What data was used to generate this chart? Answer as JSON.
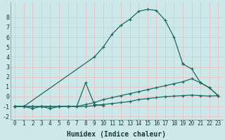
{
  "xlabel": "Humidex (Indice chaleur)",
  "background_color": "#cde8e8",
  "grid_color": "#e8c8c8",
  "line_color": "#1a6b60",
  "xlim": [
    -0.5,
    23.5
  ],
  "ylim": [
    -2.3,
    9.5
  ],
  "xticks": [
    0,
    1,
    2,
    3,
    4,
    5,
    6,
    7,
    8,
    9,
    10,
    11,
    12,
    13,
    14,
    15,
    16,
    17,
    18,
    19,
    20,
    21,
    22,
    23
  ],
  "yticks": [
    -2,
    -1,
    0,
    1,
    2,
    3,
    4,
    5,
    6,
    7,
    8
  ],
  "series": [
    {
      "x": [
        0,
        1,
        9,
        10,
        11,
        12,
        13,
        14,
        15,
        16,
        17,
        18,
        19
      ],
      "y": [
        -1,
        -1,
        4.0,
        5.0,
        6.3,
        7.2,
        7.8,
        8.6,
        8.8,
        8.7,
        7.7,
        6.0,
        3.3
      ]
    },
    {
      "x": [
        0,
        1,
        2,
        3,
        4,
        5,
        6,
        7,
        8,
        9,
        10,
        11,
        12,
        13,
        14,
        15,
        16,
        17,
        18,
        19,
        20,
        21,
        22,
        23
      ],
      "y": [
        -1,
        -1,
        -1,
        -1,
        -1,
        -1,
        -1,
        -1,
        -0.8,
        -0.6,
        -0.3,
        -0.1,
        0.1,
        0.3,
        0.5,
        0.7,
        0.9,
        1.1,
        1.3,
        1.5,
        1.8,
        1.4,
        0.9,
        0.1
      ]
    },
    {
      "x": [
        0,
        1,
        2,
        3,
        4,
        5,
        6,
        7,
        8,
        9,
        10,
        11,
        12,
        13,
        14,
        15,
        16,
        17,
        18,
        19,
        20,
        21,
        22,
        23
      ],
      "y": [
        -1,
        -1,
        -1,
        -1,
        -1,
        -1,
        -1,
        -1,
        -1,
        -0.9,
        -0.8,
        -0.7,
        -0.6,
        -0.5,
        -0.3,
        -0.2,
        -0.1,
        0.0,
        0.05,
        0.1,
        0.15,
        0.1,
        0.05,
        0.1
      ]
    },
    {
      "x": [
        0,
        1,
        2,
        3,
        4,
        5,
        6,
        7,
        8,
        9,
        10
      ],
      "y": [
        -1,
        -1,
        -1.2,
        -1.0,
        -1.2,
        -1.0,
        -1.0,
        -1.0,
        1.4,
        -0.8,
        -0.9
      ]
    },
    {
      "x": [
        19,
        20,
        21,
        22,
        23
      ],
      "y": [
        3.3,
        2.8,
        1.4,
        0.9,
        0.1
      ]
    }
  ]
}
